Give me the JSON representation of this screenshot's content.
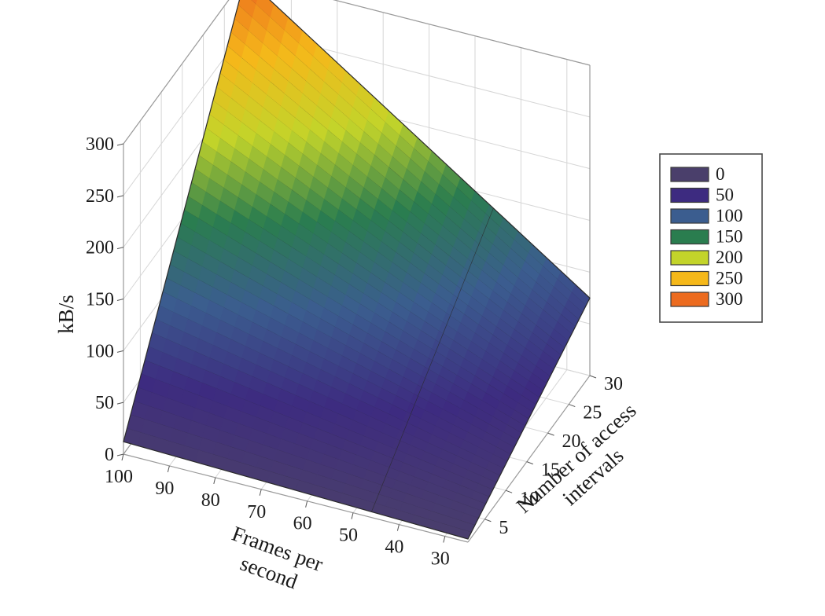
{
  "chart_data": {
    "type": "surface",
    "z_label": "kB/s",
    "x_label": [
      "Frames per",
      "second"
    ],
    "y_label": [
      "Number of access",
      "intervals"
    ],
    "z_ticks": [
      0,
      50,
      100,
      150,
      200,
      250,
      300
    ],
    "x_ticks": [
      100,
      90,
      80,
      70,
      60,
      50,
      40,
      30
    ],
    "y_ticks": [
      5,
      10,
      15,
      20,
      25,
      30
    ],
    "x_range": [
      25,
      100
    ],
    "y_range": [
      1,
      30
    ],
    "z_range": [
      0,
      300
    ],
    "corners": [
      {
        "fps": 100,
        "intervals": 1,
        "kbps": 12
      },
      {
        "fps": 25,
        "intervals": 1,
        "kbps": 3
      },
      {
        "fps": 25,
        "intervals": 30,
        "kbps": 75
      },
      {
        "fps": 100,
        "intervals": 30,
        "kbps": 300
      }
    ],
    "legend": {
      "placement": "right",
      "entries": [
        {
          "label": "0",
          "color": "#4a3f6b"
        },
        {
          "label": "50",
          "color": "#3d2b80"
        },
        {
          "label": "100",
          "color": "#3b5d8f"
        },
        {
          "label": "150",
          "color": "#2a7d4f"
        },
        {
          "label": "200",
          "color": "#c3d42a"
        },
        {
          "label": "250",
          "color": "#f5b81a"
        },
        {
          "label": "300",
          "color": "#ec6b1f"
        }
      ]
    },
    "grid": true
  }
}
